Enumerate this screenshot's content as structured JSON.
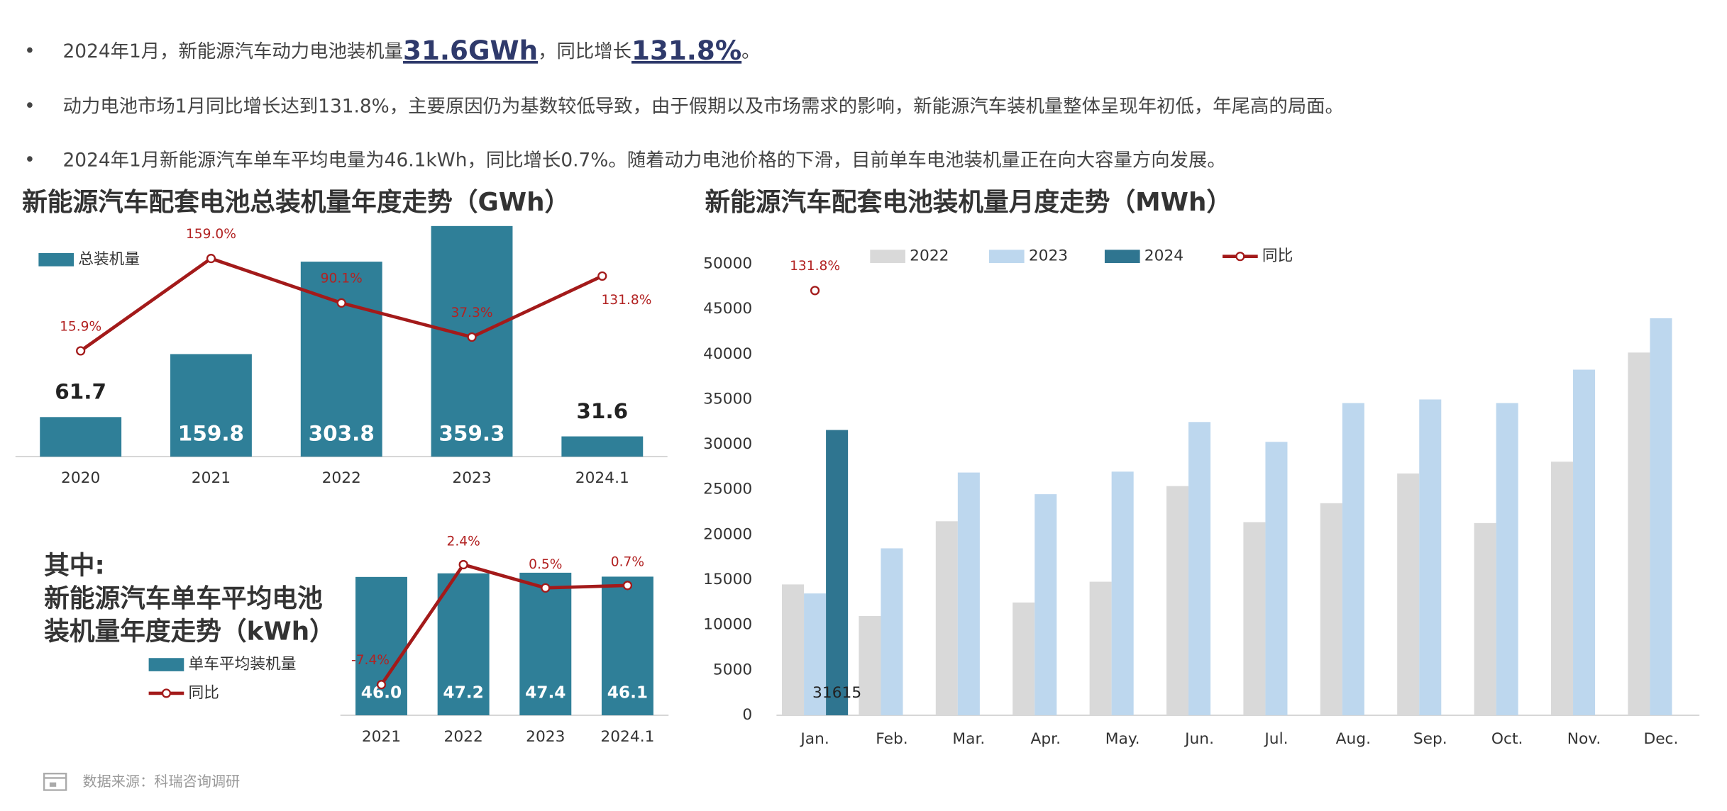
{
  "bullets": [
    [
      {
        "text": "2024年1月，新能源汽车动力电池装机量"
      },
      {
        "text": "31.6GWh",
        "bold": true
      },
      {
        "text": "，同比增长"
      },
      {
        "text": "131.8%",
        "bold": true
      },
      {
        "text": "。"
      }
    ],
    [
      {
        "text": "动力电池市场1月同比增长达到131.8%，主要原因仍为基数较低导致，由于假期以及市场需求的影响，新能源汽车装机量整体呈现年初低，年尾高的局面。"
      }
    ],
    [
      {
        "text": "2024年1月新能源汽车单车平均电量为46.1kWh，同比增长0.7%。随着动力电池价格的下滑，目前单车电池装机量正在向大容量方向发展。"
      }
    ]
  ],
  "chart_data": [
    {
      "type": "bar",
      "title": "新能源汽车配套电池总装机量年度走势（GWh）",
      "categories": [
        "2020",
        "2021",
        "2022",
        "2023",
        "2024.1"
      ],
      "ylim": [
        0,
        360
      ],
      "y2lim": [
        -148,
        210
      ],
      "series": [
        {
          "name": "总装机量",
          "type": "bar",
          "color": "#2f7f98",
          "values": [
            61.7,
            159.8,
            303.8,
            359.3,
            31.6
          ],
          "labels": true
        },
        {
          "type": "line",
          "axis": "y2",
          "color": "#a31a1a",
          "values": [
            15.9,
            159.0,
            90.1,
            37.3,
            131.8
          ],
          "value_labels": [
            "15.9%",
            "159.0%",
            "90.1%",
            "37.3%",
            "131.8%"
          ]
        }
      ]
    },
    {
      "type": "bar",
      "title_lines": [
        "其中:",
        "新能源汽车单车平均电池",
        "装机量年度走势（kWh）"
      ],
      "categories": [
        "2021",
        "2022",
        "2023",
        "2024.1"
      ],
      "ylim": [
        0,
        50.5
      ],
      "y2lim": [
        -9.9,
        2.5
      ],
      "series": [
        {
          "name": "单车平均装机量",
          "type": "bar",
          "color": "#2f7f98",
          "values": [
            46.0,
            47.2,
            47.4,
            46.1
          ],
          "value_labels": [
            "46.0",
            "47.2",
            "47.4",
            "46.1"
          ]
        },
        {
          "name": "同比",
          "type": "line",
          "axis": "y2",
          "color": "#a31a1a",
          "values": [
            -7.4,
            2.4,
            0.5,
            0.7
          ],
          "value_labels": [
            "-7.4%",
            "2.4%",
            "0.5%",
            "0.7%"
          ]
        }
      ]
    },
    {
      "type": "bar",
      "title": "新能源汽车配套电池装机量月度走势（MWh）",
      "categories": [
        "Jan.",
        "Feb.",
        "Mar.",
        "Apr.",
        "May.",
        "Jun.",
        "Jul.",
        "Aug.",
        "Sep.",
        "Oct.",
        "Nov.",
        "Dec."
      ],
      "ylim": [
        0,
        50000
      ],
      "yticks": [
        0,
        5000,
        10000,
        15000,
        20000,
        25000,
        30000,
        35000,
        40000,
        45000,
        50000
      ],
      "grid": false,
      "y2lim": [
        0,
        140
      ],
      "series": [
        {
          "name": "2022",
          "type": "bar",
          "color": "#d9d9d9",
          "values": [
            14500,
            11000,
            21500,
            12500,
            14800,
            25400,
            21400,
            23500,
            26800,
            21300,
            28100,
            40200
          ]
        },
        {
          "name": "2023",
          "type": "bar",
          "color": "#bdd7ee",
          "values": [
            13500,
            18500,
            26900,
            24500,
            27000,
            32500,
            30300,
            34600,
            35000,
            34600,
            38300,
            44000
          ]
        },
        {
          "name": "2024",
          "type": "bar",
          "color": "#2f7590",
          "values": [
            31615,
            null,
            null,
            null,
            null,
            null,
            null,
            null,
            null,
            null,
            null,
            null
          ],
          "labels": true
        },
        {
          "name": "同比",
          "type": "line",
          "axis": "y2",
          "color": "#a31a1a",
          "values": [
            131.8,
            null,
            null,
            null,
            null,
            null,
            null,
            null,
            null,
            null,
            null,
            null
          ],
          "value_labels": [
            "131.8%",
            null,
            null,
            null,
            null,
            null,
            null,
            null,
            null,
            null,
            null,
            null
          ]
        }
      ]
    }
  ],
  "source": "数据来源：科瑞咨询调研"
}
